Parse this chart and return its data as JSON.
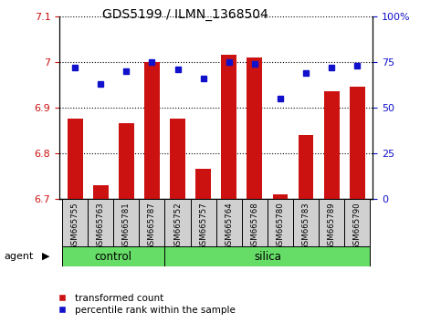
{
  "title": "GDS5199 / ILMN_1368504",
  "samples": [
    "GSM665755",
    "GSM665763",
    "GSM665781",
    "GSM665787",
    "GSM665752",
    "GSM665757",
    "GSM665764",
    "GSM665768",
    "GSM665780",
    "GSM665783",
    "GSM665789",
    "GSM665790"
  ],
  "transformed_count": [
    6.875,
    6.73,
    6.865,
    7.0,
    6.875,
    6.765,
    7.015,
    7.01,
    6.71,
    6.84,
    6.935,
    6.945
  ],
  "percentile_rank": [
    72,
    63,
    70,
    75,
    71,
    66,
    75,
    74,
    55,
    69,
    72,
    73
  ],
  "control_count": 4,
  "silica_count": 8,
  "group_labels": [
    "control",
    "silica"
  ],
  "group_color": "#66dd66",
  "ylim_left": [
    6.7,
    7.1
  ],
  "ylim_right": [
    0,
    100
  ],
  "yticks_left": [
    6.7,
    6.8,
    6.9,
    7.0,
    7.1
  ],
  "ytick_labels_left": [
    "6.7",
    "6.8",
    "6.9",
    "7",
    "7.1"
  ],
  "yticks_right": [
    0,
    25,
    50,
    75,
    100
  ],
  "ytick_labels_right": [
    "0",
    "25",
    "50",
    "75",
    "100%"
  ],
  "bar_color": "#cc1111",
  "dot_color": "#1111cc",
  "bar_bottom": 6.7,
  "bg_label": "#d0d0d0",
  "left_color": "#cc1111",
  "right_color": "#1111cc",
  "legend_labels": [
    "transformed count",
    "percentile rank within the sample"
  ]
}
